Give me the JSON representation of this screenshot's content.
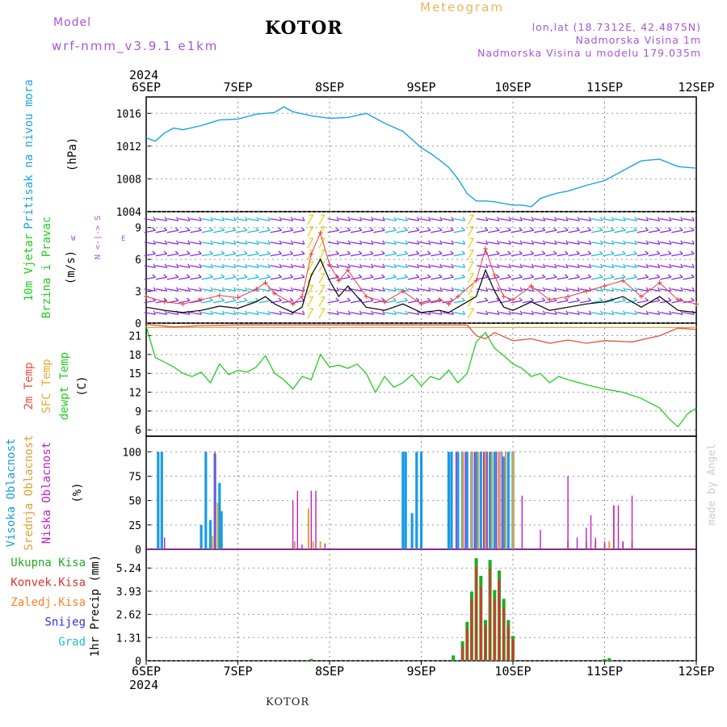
{
  "header": {
    "model_label": "Model",
    "model_name": "wrf-nmm_v3.9.1 e1km",
    "station": "KOTOR",
    "title": "Meteogram",
    "location": "lon,lat (18.7312E, 42.4875N)",
    "elevation": "Nadmorska Visina 1m",
    "model_elevation": "Nadmorska Visina u modelu 179.035m"
  },
  "footer": {
    "station": "KOTOR",
    "watermark": "made by Angel"
  },
  "time_axis": {
    "year": "2024",
    "labels": [
      "6SEP",
      "7SEP",
      "8SEP",
      "9SEP",
      "10SEP",
      "11SEP",
      "12SEP"
    ],
    "range_days": [
      0,
      6
    ]
  },
  "colors": {
    "pressure": "#1aa3e6",
    "wind_label": "#22cc22",
    "wind_barb_cool": "#8a2be2",
    "wind_barb_mid": "#1fb8d8",
    "wind_barb_warm": "#e8d020",
    "wind_speed": "#000000",
    "wind_gust": "#e83c3c",
    "temp_2m": "#e85040",
    "temp_sfc": "#e8a830",
    "dewpt": "#22cc22",
    "cloud_high": "#1a9be6",
    "cloud_mid": "#e0a030",
    "cloud_low": "#c020c0",
    "precip_total": "#22aa22",
    "precip_conv": "#e03030",
    "precip_frz": "#ff7f27",
    "precip_snow": "#3030e0",
    "precip_hail": "#20c0c0"
  },
  "panels": {
    "pressure": {
      "label": "Pritisak na nivou mora",
      "unit": "(hPa)"
    },
    "wind": {
      "label1": "10m Vjetar",
      "label2": "Brzina i Pravac",
      "unit": "(m/s)",
      "compass_ns": "N <-|-> S",
      "compass_w": "W",
      "compass_e": "E"
    },
    "temp": {
      "label1": "2m Temp",
      "label2": "SFC Temp",
      "label3": "dewpt Temp",
      "unit": "(C)"
    },
    "cloud": {
      "label1": "Visoka Oblacnost",
      "label2": "Srednja Oblacnost",
      "label3": "Niska Oblacnost",
      "unit": "(%)"
    },
    "precip": {
      "labels": [
        "Ukupna Kisa",
        "Konvek.Kisa",
        "Zaledj.Kisa",
        "Snijeg",
        "Grad"
      ],
      "axis_label": "1hr Precip (mm)"
    }
  },
  "chart_data": [
    {
      "type": "line",
      "name": "pressure",
      "ylim": [
        1004,
        1018
      ],
      "yticks": [
        1004,
        1008,
        1012,
        1016
      ],
      "x": [
        0,
        0.1,
        0.2,
        0.3,
        0.4,
        0.6,
        0.8,
        1.0,
        1.2,
        1.4,
        1.5,
        1.6,
        1.8,
        2.0,
        2.2,
        2.4,
        2.6,
        2.8,
        3.0,
        3.1,
        3.2,
        3.3,
        3.4,
        3.5,
        3.6,
        3.7,
        3.8,
        3.9,
        4.0,
        4.1,
        4.2,
        4.3,
        4.4,
        4.5,
        4.6,
        4.8,
        5.0,
        5.2,
        5.4,
        5.6,
        5.8,
        6.0
      ],
      "y": [
        1013.0,
        1012.6,
        1013.6,
        1014.2,
        1014.0,
        1014.5,
        1015.2,
        1015.3,
        1015.9,
        1016.1,
        1016.8,
        1016.2,
        1015.7,
        1015.4,
        1015.5,
        1016.0,
        1014.8,
        1013.8,
        1011.8,
        1011.1,
        1010.3,
        1009.4,
        1008.0,
        1006.2,
        1005.3,
        1005.3,
        1005.2,
        1005.0,
        1004.8,
        1004.8,
        1004.6,
        1005.6,
        1006.0,
        1006.3,
        1006.5,
        1007.2,
        1007.8,
        1009.0,
        1010.2,
        1010.4,
        1009.5,
        1009.3
      ]
    },
    {
      "type": "line",
      "name": "wind",
      "ylim": [
        0,
        10.5
      ],
      "yticks": [
        0,
        3,
        6,
        9
      ],
      "series": [
        {
          "name": "speed",
          "x": [
            0,
            0.2,
            0.4,
            0.6,
            0.8,
            1.0,
            1.2,
            1.3,
            1.4,
            1.6,
            1.7,
            1.8,
            1.9,
            2.0,
            2.1,
            2.2,
            2.4,
            2.6,
            2.8,
            3.0,
            3.2,
            3.3,
            3.4,
            3.6,
            3.7,
            3.8,
            3.9,
            4.0,
            4.2,
            4.4,
            4.6,
            4.8,
            5.0,
            5.2,
            5.4,
            5.6,
            5.8,
            6.0
          ],
          "y": [
            1.5,
            1.2,
            1.0,
            1.2,
            1.6,
            1.4,
            2.0,
            2.5,
            1.8,
            1.0,
            1.5,
            4.5,
            6.0,
            4.0,
            2.5,
            3.5,
            1.5,
            1.2,
            1.8,
            1.0,
            1.2,
            1.0,
            1.5,
            2.5,
            5.0,
            3.0,
            1.5,
            1.2,
            2.0,
            1.2,
            1.5,
            1.8,
            2.0,
            2.5,
            1.5,
            2.5,
            1.2,
            1.0
          ]
        },
        {
          "name": "gust",
          "x": [
            0,
            0.2,
            0.4,
            0.6,
            0.8,
            1.0,
            1.2,
            1.3,
            1.4,
            1.6,
            1.7,
            1.8,
            1.9,
            2.0,
            2.1,
            2.2,
            2.4,
            2.6,
            2.8,
            3.0,
            3.2,
            3.3,
            3.4,
            3.6,
            3.7,
            3.8,
            3.9,
            4.0,
            4.2,
            4.4,
            4.6,
            4.8,
            5.0,
            5.2,
            5.4,
            5.6,
            5.8,
            6.0
          ],
          "y": [
            2.5,
            2.0,
            1.8,
            2.2,
            2.6,
            2.4,
            3.2,
            3.8,
            2.8,
            1.8,
            2.5,
            6.5,
            8.5,
            5.5,
            4.0,
            5.0,
            2.5,
            2.0,
            3.0,
            1.8,
            2.2,
            1.8,
            2.5,
            4.0,
            7.0,
            4.5,
            2.5,
            2.2,
            3.5,
            2.2,
            2.5,
            3.0,
            3.5,
            4.0,
            2.5,
            3.8,
            2.2,
            1.8
          ]
        }
      ]
    },
    {
      "type": "line",
      "name": "temperature",
      "ylim": [
        5,
        23
      ],
      "yticks": [
        6,
        9,
        12,
        15,
        18,
        21
      ],
      "series": [
        {
          "name": "2m",
          "x": [
            0,
            0.3,
            0.6,
            1.0,
            1.5,
            2.0,
            2.5,
            3.0,
            3.3,
            3.5,
            3.6,
            3.7,
            3.8,
            4.0,
            4.2,
            4.4,
            4.6,
            4.8,
            5.0,
            5.3,
            5.6,
            5.8,
            6.0
          ],
          "y": [
            22.8,
            22.4,
            22.6,
            22.7,
            22.7,
            22.7,
            22.7,
            22.7,
            22.7,
            22.7,
            21.0,
            20.5,
            21.5,
            20.2,
            20.5,
            19.8,
            20.3,
            19.8,
            20.2,
            20.0,
            21.0,
            22.2,
            22.0
          ]
        },
        {
          "name": "SFC",
          "x": [
            0,
            6
          ],
          "y": [
            22.3,
            22.3
          ]
        },
        {
          "name": "dewpt",
          "x": [
            0,
            0.1,
            0.2,
            0.3,
            0.4,
            0.5,
            0.6,
            0.7,
            0.8,
            0.9,
            1.0,
            1.1,
            1.2,
            1.3,
            1.4,
            1.5,
            1.6,
            1.7,
            1.8,
            1.9,
            2.0,
            2.1,
            2.2,
            2.3,
            2.4,
            2.5,
            2.6,
            2.7,
            2.8,
            2.9,
            3.0,
            3.1,
            3.2,
            3.3,
            3.4,
            3.5,
            3.6,
            3.7,
            3.8,
            3.9,
            4.0,
            4.1,
            4.2,
            4.3,
            4.4,
            4.5,
            4.6,
            4.8,
            5.0,
            5.2,
            5.4,
            5.6,
            5.7,
            5.8,
            5.9,
            6.0
          ],
          "y": [
            22.5,
            17.5,
            16.8,
            16.0,
            15.0,
            14.5,
            15.2,
            13.5,
            16.5,
            14.8,
            15.5,
            15.2,
            16.0,
            17.8,
            15.0,
            14.0,
            12.5,
            14.5,
            14.0,
            18.0,
            16.0,
            16.3,
            15.8,
            16.5,
            15.0,
            12.0,
            14.5,
            12.8,
            13.5,
            14.8,
            13.0,
            14.5,
            14.0,
            15.5,
            13.5,
            15.0,
            20.0,
            21.5,
            19.0,
            17.8,
            16.5,
            15.8,
            14.5,
            15.0,
            13.5,
            14.5,
            14.0,
            13.2,
            12.5,
            12.0,
            11.0,
            9.5,
            7.8,
            6.5,
            8.5,
            9.5
          ]
        }
      ]
    },
    {
      "type": "bar",
      "name": "cloud_cover",
      "ylim": [
        0,
        100
      ],
      "yticks": [
        0,
        25,
        50,
        75,
        100
      ],
      "series": [
        {
          "name": "high",
          "x": [
            0.13,
            0.17,
            0.6,
            0.65,
            0.7,
            0.75,
            0.8,
            0.82,
            2.8,
            2.83,
            2.9,
            2.95,
            3.0,
            3.3,
            3.33,
            3.4,
            3.45,
            3.5,
            3.55,
            3.6,
            3.65,
            3.7,
            3.75,
            3.8,
            3.85,
            3.9,
            3.95,
            4.0
          ],
          "y": [
            100,
            100,
            25,
            100,
            30,
            98,
            68,
            39,
            100,
            100,
            37,
            100,
            100,
            100,
            100,
            100,
            100,
            100,
            100,
            100,
            100,
            100,
            100,
            100,
            100,
            95,
            100,
            100
          ]
        },
        {
          "name": "mid",
          "x": [
            0.72,
            0.78,
            1.62,
            1.77,
            1.82,
            1.9,
            3.45,
            3.55,
            3.62,
            3.7,
            3.77,
            3.85,
            3.92,
            4.0,
            4.6,
            4.8,
            4.9,
            5.0,
            5.05,
            5.1,
            5.2,
            5.3
          ],
          "y": [
            14,
            48,
            8,
            42,
            8,
            8,
            100,
            100,
            100,
            100,
            100,
            100,
            100,
            100,
            8,
            8,
            8,
            6,
            8,
            45,
            8,
            8
          ]
        },
        {
          "name": "low",
          "x": [
            0.2,
            0.75,
            1.6,
            1.65,
            1.7,
            1.8,
            1.85,
            1.95,
            3.38,
            3.48,
            3.58,
            3.68,
            3.72,
            3.82,
            3.88,
            4.1,
            4.3,
            4.6,
            4.7,
            4.8,
            4.85,
            4.9,
            5.0,
            5.1,
            5.15,
            5.2,
            5.3
          ],
          "y": [
            12,
            100,
            50,
            60,
            5,
            60,
            60,
            6,
            100,
            100,
            100,
            100,
            100,
            100,
            100,
            55,
            20,
            75,
            12,
            22,
            35,
            12,
            8,
            45,
            45,
            8,
            55
          ]
        }
      ]
    },
    {
      "type": "bar",
      "name": "precip_1hr",
      "ylim": [
        0,
        6.3
      ],
      "yticks": [
        0,
        1.31,
        2.62,
        3.93,
        5.24
      ],
      "series": [
        {
          "name": "total",
          "x": [
            1.8,
            3.35,
            3.45,
            3.5,
            3.55,
            3.6,
            3.65,
            3.7,
            3.75,
            3.8,
            3.85,
            3.9,
            3.95,
            4.0,
            5.0,
            5.05
          ],
          "y": [
            0.1,
            0.3,
            1.1,
            2.2,
            3.9,
            5.8,
            4.8,
            2.3,
            5.7,
            4.0,
            5.1,
            3.5,
            2.3,
            1.4,
            0.1,
            0.15
          ]
        },
        {
          "name": "convective",
          "x": [
            3.45,
            3.5,
            3.55,
            3.6,
            3.65,
            3.7,
            3.75,
            3.8,
            3.85,
            3.9,
            3.95,
            4.0
          ],
          "y": [
            0.8,
            1.8,
            3.5,
            5.3,
            4.2,
            2.0,
            5.2,
            3.5,
            4.6,
            3.0,
            2.0,
            1.2
          ]
        }
      ]
    }
  ]
}
